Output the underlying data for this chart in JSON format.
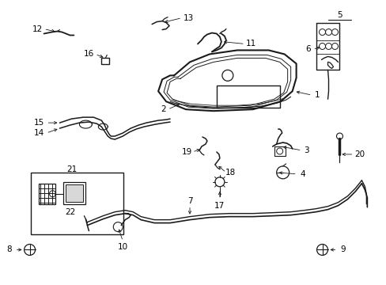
{
  "bg_color": "#ffffff",
  "line_color": "#1a1a1a",
  "text_color": "#000000",
  "font_size": 7.5
}
